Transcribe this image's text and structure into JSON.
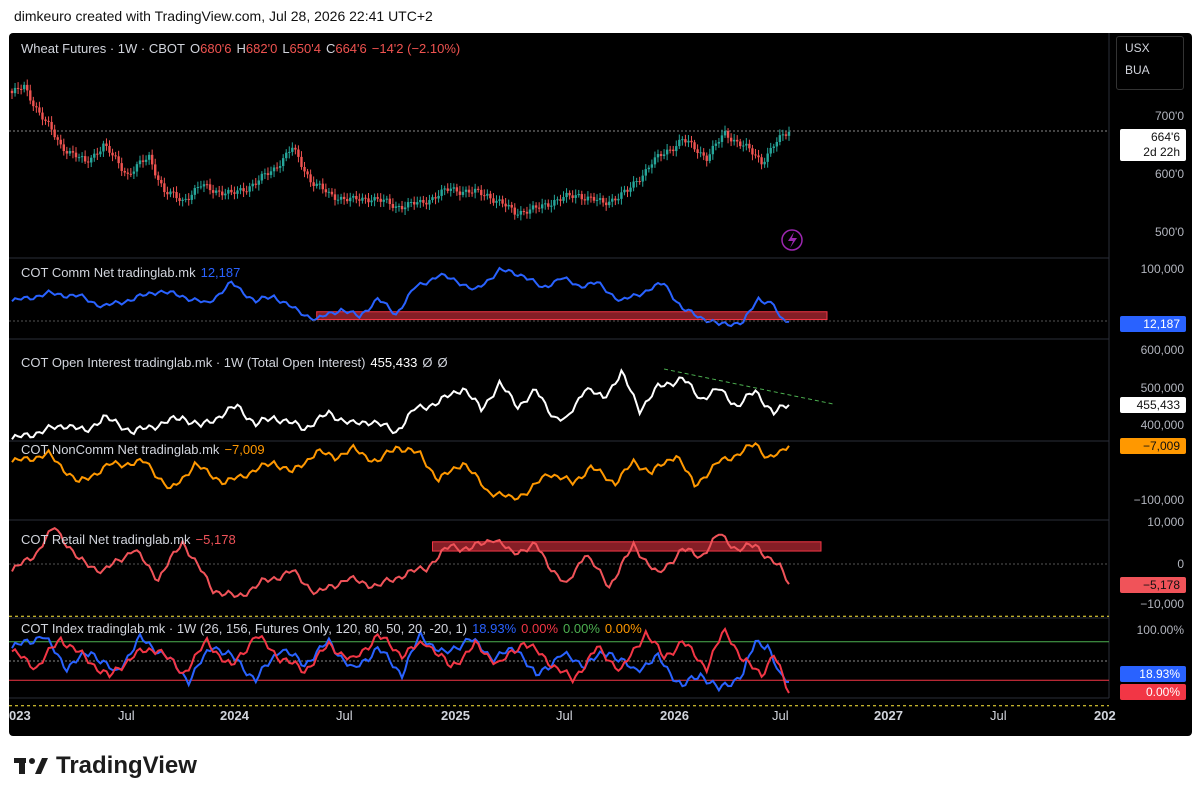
{
  "caption": "dimkeuro created with TradingView.com, Jul 28, 2026 22:41 UTC+2",
  "brand": "TradingView",
  "scale_box": {
    "currency": "USX",
    "unit": "BUA"
  },
  "colors": {
    "bg": "#000000",
    "up": "#26a69a",
    "down": "#ef5350",
    "comm": "#2962ff",
    "oi": "#ffffff",
    "noncomm": "#ff9800",
    "retail": "#f05359",
    "index_blue": "#2962ff",
    "index_red": "#f23645"
  },
  "x_axis": {
    "labels": [
      "023",
      "Jul",
      "2024",
      "Jul",
      "2025",
      "Jul",
      "2026",
      "Jul",
      "2027",
      "Jul",
      "202"
    ],
    "bold": [
      true,
      false,
      true,
      false,
      true,
      false,
      true,
      false,
      true,
      false,
      true
    ]
  },
  "chart_data": [
    {
      "type": "candlestick",
      "title": "Wheat Futures · 1W · CBOT",
      "ohlc_label": {
        "o_key": "O",
        "o": "680'6",
        "h_key": "H",
        "h": "682'0",
        "l_key": "L",
        "l": "650'4",
        "c_key": "C",
        "c": "664'6",
        "change": "−14'2 (−2.10%)"
      },
      "y_ticks": [
        "700'0",
        "600'0",
        "500'0"
      ],
      "last_price": "664'6",
      "countdown": "2d 22h",
      "close_anchors": [
        [
          0,
          730
        ],
        [
          4,
          740
        ],
        [
          8,
          705
        ],
        [
          16,
          640
        ],
        [
          24,
          610
        ],
        [
          30,
          640
        ],
        [
          38,
          590
        ],
        [
          45,
          620
        ],
        [
          50,
          560
        ],
        [
          56,
          545
        ],
        [
          62,
          570
        ],
        [
          72,
          555
        ],
        [
          80,
          575
        ],
        [
          86,
          600
        ],
        [
          92,
          635
        ],
        [
          98,
          580
        ],
        [
          104,
          555
        ],
        [
          112,
          545
        ],
        [
          118,
          550
        ],
        [
          126,
          535
        ],
        [
          134,
          540
        ],
        [
          144,
          565
        ],
        [
          156,
          555
        ],
        [
          165,
          525
        ],
        [
          172,
          530
        ],
        [
          178,
          545
        ],
        [
          186,
          555
        ],
        [
          194,
          540
        ],
        [
          202,
          560
        ],
        [
          210,
          610
        ],
        [
          220,
          650
        ],
        [
          228,
          620
        ],
        [
          234,
          660
        ],
        [
          240,
          640
        ],
        [
          246,
          612
        ],
        [
          250,
          640
        ],
        [
          255,
          665
        ]
      ]
    },
    {
      "type": "line",
      "title": "COT Comm Net tradinglab.mk",
      "value_label": "12,187",
      "y_ticks": [
        "100,000"
      ],
      "last_value": "12,187",
      "anchors": [
        [
          0,
          50000
        ],
        [
          12,
          65000
        ],
        [
          22,
          60000
        ],
        [
          30,
          40000
        ],
        [
          40,
          55000
        ],
        [
          48,
          70000
        ],
        [
          56,
          60000
        ],
        [
          64,
          45000
        ],
        [
          72,
          85000
        ],
        [
          80,
          50000
        ],
        [
          86,
          60000
        ],
        [
          94,
          30000
        ],
        [
          100,
          15000
        ],
        [
          108,
          35000
        ],
        [
          114,
          20000
        ],
        [
          120,
          55000
        ],
        [
          126,
          25000
        ],
        [
          132,
          75000
        ],
        [
          140,
          100000
        ],
        [
          146,
          90000
        ],
        [
          152,
          70000
        ],
        [
          160,
          110000
        ],
        [
          168,
          100000
        ],
        [
          174,
          75000
        ],
        [
          180,
          95000
        ],
        [
          186,
          80000
        ],
        [
          192,
          85000
        ],
        [
          200,
          50000
        ],
        [
          206,
          65000
        ],
        [
          214,
          85000
        ],
        [
          220,
          35000
        ],
        [
          226,
          20000
        ],
        [
          232,
          5000
        ],
        [
          240,
          10000
        ],
        [
          245,
          55000
        ],
        [
          250,
          45000
        ],
        [
          252,
          15000
        ],
        [
          255,
          12187
        ]
      ],
      "highlight_range": [
        15000,
        30000
      ]
    },
    {
      "type": "line",
      "title": "COT Open Interest tradinglab.mk · 1W (Total Open Interest)",
      "value_label": "455,433",
      "extra_labels": [
        "Ø",
        "Ø"
      ],
      "y_ticks": [
        "600,000",
        "500,000",
        "400,000"
      ],
      "last_value": "455,433",
      "anchors": [
        [
          0,
          360000
        ],
        [
          18,
          400000
        ],
        [
          24,
          380000
        ],
        [
          30,
          420000
        ],
        [
          40,
          380000
        ],
        [
          56,
          420000
        ],
        [
          62,
          395000
        ],
        [
          74,
          450000
        ],
        [
          80,
          400000
        ],
        [
          86,
          420000
        ],
        [
          96,
          390000
        ],
        [
          104,
          430000
        ],
        [
          112,
          400000
        ],
        [
          118,
          410000
        ],
        [
          126,
          380000
        ],
        [
          132,
          440000
        ],
        [
          140,
          460000
        ],
        [
          148,
          500000
        ],
        [
          154,
          440000
        ],
        [
          160,
          510000
        ],
        [
          166,
          450000
        ],
        [
          172,
          490000
        ],
        [
          178,
          420000
        ],
        [
          182,
          410000
        ],
        [
          188,
          500000
        ],
        [
          194,
          470000
        ],
        [
          200,
          540000
        ],
        [
          206,
          440000
        ],
        [
          212,
          500000
        ],
        [
          220,
          525000
        ],
        [
          226,
          470000
        ],
        [
          232,
          495000
        ],
        [
          238,
          450000
        ],
        [
          244,
          490000
        ],
        [
          250,
          430000
        ],
        [
          255,
          455433
        ]
      ]
    },
    {
      "type": "line",
      "title": "COT NonComm Net tradinglab.mk",
      "value_label": "−7,009",
      "y_ticks": [
        "−100,000"
      ],
      "last_value": "−7,009",
      "anchors": [
        [
          0,
          -40000
        ],
        [
          12,
          -25000
        ],
        [
          22,
          -80000
        ],
        [
          32,
          -45000
        ],
        [
          44,
          -40000
        ],
        [
          52,
          -95000
        ],
        [
          60,
          -45000
        ],
        [
          70,
          -80000
        ],
        [
          80,
          -55000
        ],
        [
          86,
          -40000
        ],
        [
          92,
          -60000
        ],
        [
          100,
          -20000
        ],
        [
          106,
          -30000
        ],
        [
          112,
          -15000
        ],
        [
          120,
          -40000
        ],
        [
          126,
          -10000
        ],
        [
          134,
          -25000
        ],
        [
          140,
          -75000
        ],
        [
          148,
          -40000
        ],
        [
          156,
          -95000
        ],
        [
          164,
          -110000
        ],
        [
          170,
          -95000
        ],
        [
          176,
          -60000
        ],
        [
          184,
          -80000
        ],
        [
          190,
          -50000
        ],
        [
          198,
          -80000
        ],
        [
          204,
          -40000
        ],
        [
          210,
          -60000
        ],
        [
          218,
          -25000
        ],
        [
          224,
          -85000
        ],
        [
          232,
          -40000
        ],
        [
          238,
          -25000
        ],
        [
          244,
          -5000
        ],
        [
          248,
          -30000
        ],
        [
          252,
          -25000
        ],
        [
          255,
          -7009
        ]
      ]
    },
    {
      "type": "line",
      "title": "COT Retail Net tradinglab.mk",
      "value_label": "−5,178",
      "y_ticks": [
        "10,000",
        "0",
        "−10,000"
      ],
      "last_value": "−5,178",
      "anchors": [
        [
          0,
          -2000
        ],
        [
          8,
          3000
        ],
        [
          14,
          10000
        ],
        [
          22,
          1000
        ],
        [
          30,
          -2000
        ],
        [
          40,
          4000
        ],
        [
          48,
          -4000
        ],
        [
          56,
          6000
        ],
        [
          66,
          -7000
        ],
        [
          74,
          -9000
        ],
        [
          82,
          -5000
        ],
        [
          92,
          -2000
        ],
        [
          100,
          -8000
        ],
        [
          110,
          -4000
        ],
        [
          120,
          -6000
        ],
        [
          128,
          -3000
        ],
        [
          136,
          -1000
        ],
        [
          144,
          5000
        ],
        [
          150,
          4000
        ],
        [
          158,
          7000
        ],
        [
          164,
          3000
        ],
        [
          172,
          5000
        ],
        [
          176,
          0
        ],
        [
          182,
          -6000
        ],
        [
          188,
          3000
        ],
        [
          196,
          -6000
        ],
        [
          204,
          5000
        ],
        [
          212,
          -3000
        ],
        [
          220,
          4000
        ],
        [
          226,
          2000
        ],
        [
          232,
          8000
        ],
        [
          238,
          4000
        ],
        [
          244,
          5000
        ],
        [
          248,
          2000
        ],
        [
          252,
          -1000
        ],
        [
          255,
          -5178
        ]
      ],
      "highlight_range": [
        3500,
        6000
      ]
    },
    {
      "type": "line",
      "title": "COT Index tradinglab.mk · 1W (26, 156, Futures Only, 120, 80, 50, 20, -20, 1)",
      "value_labels": [
        "18.93%",
        "0.00%",
        "0.00%",
        "0.00%"
      ],
      "y_ticks": [
        "100.00%"
      ],
      "last_values": [
        "18.93%",
        "0.00%"
      ],
      "levels": [
        120,
        80,
        50,
        20,
        -20
      ],
      "series": [
        {
          "anchors": [
            [
              0,
              70
            ],
            [
              10,
              90
            ],
            [
              18,
              40
            ],
            [
              26,
              65
            ],
            [
              34,
              30
            ],
            [
              42,
              85
            ],
            [
              50,
              60
            ],
            [
              58,
              20
            ],
            [
              66,
              75
            ],
            [
              74,
              50
            ],
            [
              80,
              20
            ],
            [
              88,
              70
            ],
            [
              96,
              45
            ],
            [
              104,
              80
            ],
            [
              112,
              35
            ],
            [
              120,
              70
            ],
            [
              128,
              30
            ],
            [
              134,
              90
            ],
            [
              142,
              60
            ],
            [
              150,
              85
            ],
            [
              158,
              55
            ],
            [
              166,
              70
            ],
            [
              172,
              25
            ],
            [
              180,
              60
            ],
            [
              188,
              45
            ],
            [
              196,
              65
            ],
            [
              204,
              35
            ],
            [
              212,
              55
            ],
            [
              220,
              10
            ],
            [
              226,
              30
            ],
            [
              232,
              5
            ],
            [
              240,
              30
            ],
            [
              244,
              80
            ],
            [
              248,
              75
            ],
            [
              252,
              25
            ],
            [
              255,
              18.93
            ]
          ]
        },
        {
          "anchors": [
            [
              0,
              65
            ],
            [
              8,
              40
            ],
            [
              16,
              85
            ],
            [
              24,
              55
            ],
            [
              32,
              25
            ],
            [
              40,
              60
            ],
            [
              48,
              70
            ],
            [
              56,
              30
            ],
            [
              64,
              80
            ],
            [
              72,
              40
            ],
            [
              80,
              90
            ],
            [
              88,
              55
            ],
            [
              96,
              35
            ],
            [
              104,
              75
            ],
            [
              112,
              50
            ],
            [
              120,
              90
            ],
            [
              128,
              60
            ],
            [
              136,
              80
            ],
            [
              144,
              40
            ],
            [
              152,
              75
            ],
            [
              160,
              45
            ],
            [
              168,
              80
            ],
            [
              176,
              50
            ],
            [
              184,
              20
            ],
            [
              192,
              70
            ],
            [
              200,
              35
            ],
            [
              208,
              95
            ],
            [
              214,
              55
            ],
            [
              220,
              80
            ],
            [
              228,
              40
            ],
            [
              234,
              100
            ],
            [
              240,
              50
            ],
            [
              246,
              30
            ],
            [
              250,
              60
            ],
            [
              255,
              0
            ]
          ]
        }
      ]
    }
  ]
}
